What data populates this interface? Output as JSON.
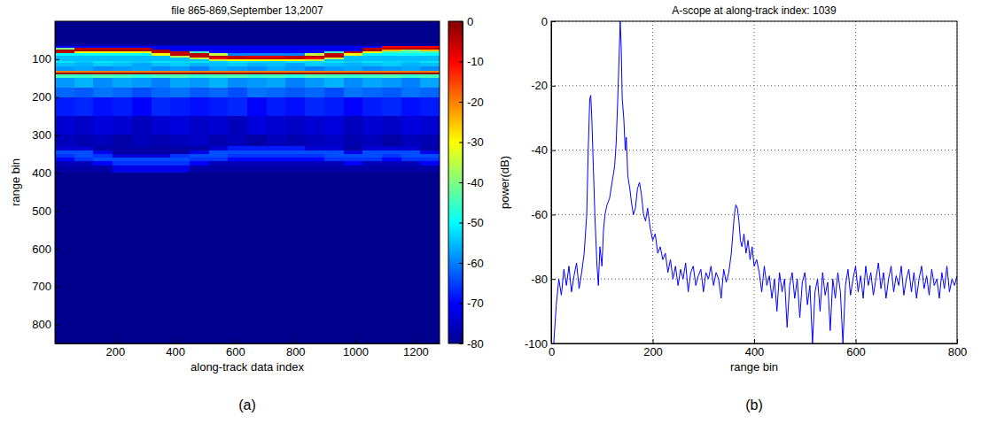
{
  "chart_data": [
    {
      "type": "heatmap",
      "title": "file 865-869,September 13,2007",
      "x_label": "along-track data index",
      "y_label": "range bin",
      "caption": "(a)",
      "xlim": [
        0,
        1280
      ],
      "ylim": [
        850,
        0
      ],
      "xticks": [
        200,
        400,
        600,
        800,
        1000,
        1200
      ],
      "yticks": [
        100,
        200,
        300,
        400,
        500,
        600,
        700,
        800
      ],
      "x_edges": [
        0,
        64,
        128,
        192,
        256,
        320,
        384,
        448,
        512,
        576,
        640,
        704,
        768,
        832,
        896,
        960,
        1024,
        1088,
        1152,
        1216,
        1280
      ],
      "y_edges": [
        0,
        60,
        65,
        70,
        75,
        80,
        85,
        90,
        95,
        100,
        105,
        110,
        120,
        130,
        135,
        140,
        150,
        175,
        200,
        250,
        300,
        330,
        340,
        350,
        360,
        370,
        380,
        400,
        500,
        600,
        700,
        850
      ],
      "cells": [
        [
          -80,
          -80,
          -80,
          -80,
          -80,
          -80,
          -80,
          -80,
          -80,
          -80,
          -80,
          -80,
          -80,
          -80,
          -80,
          -80,
          -80,
          -80,
          -80,
          -80
        ],
        [
          -78,
          -78,
          -78,
          -78,
          -78,
          -78,
          -78,
          -78,
          -78,
          -78,
          -78,
          -78,
          -78,
          -78,
          -78,
          -78,
          -78,
          -78,
          -78,
          -78
        ],
        [
          -70,
          -70,
          -70,
          -70,
          -70,
          -70,
          -70,
          -70,
          -70,
          -70,
          -70,
          -70,
          -70,
          -70,
          -70,
          -70,
          -70,
          -10,
          -10,
          -10
        ],
        [
          -40,
          -5,
          -5,
          -5,
          -5,
          -72,
          -72,
          -72,
          -72,
          -72,
          -72,
          -72,
          -72,
          -72,
          -72,
          -72,
          -5,
          -5,
          -5,
          -5
        ],
        [
          -3,
          -3,
          -3,
          -3,
          -3,
          -3,
          -70,
          -70,
          -70,
          -70,
          -70,
          -70,
          -70,
          -70,
          -70,
          -70,
          -3,
          -25,
          -40,
          -25
        ],
        [
          -5,
          -30,
          -30,
          -30,
          -30,
          -5,
          -5,
          -45,
          -70,
          -70,
          -70,
          -70,
          -70,
          -70,
          -45,
          -5,
          -30,
          -45,
          -45,
          -45
        ],
        [
          -50,
          -50,
          -50,
          -50,
          -50,
          -30,
          -5,
          -5,
          -35,
          -60,
          -60,
          -60,
          -60,
          -35,
          -5,
          -30,
          -50,
          -50,
          -50,
          -50
        ],
        [
          -55,
          -55,
          -55,
          -55,
          -55,
          -55,
          -35,
          -5,
          -5,
          -5,
          -8,
          -8,
          -5,
          -5,
          -5,
          -55,
          -55,
          -55,
          -55,
          -55
        ],
        [
          -55,
          -55,
          -55,
          -55,
          -55,
          -55,
          -55,
          -35,
          -10,
          -5,
          -5,
          -5,
          -5,
          -10,
          -35,
          -55,
          -55,
          -55,
          -55,
          -55
        ],
        [
          -55,
          -55,
          -55,
          -55,
          -55,
          -55,
          -55,
          -55,
          -35,
          -30,
          -30,
          -30,
          -30,
          -35,
          -55,
          -55,
          -55,
          -55,
          -55,
          -55
        ],
        [
          -52,
          -54,
          -52,
          -53,
          -54,
          -52,
          -53,
          -52,
          -54,
          -52,
          -53,
          -54,
          -52,
          -53,
          -52,
          -54,
          -52,
          -53,
          -54,
          -52
        ],
        [
          -55,
          -56,
          -54,
          -55,
          -57,
          -55,
          -54,
          -56,
          -55,
          -54,
          -56,
          -55,
          -57,
          -54,
          -55,
          -56,
          -55,
          -54,
          -56,
          -55
        ],
        [
          -58,
          -57,
          -59,
          -58,
          -57,
          -59,
          -58,
          -60,
          -57,
          -58,
          -59,
          -57,
          -58,
          -60,
          -58,
          -57,
          -59,
          -58,
          -57,
          -59
        ],
        [
          -20,
          -20,
          -20,
          -20,
          -20,
          -20,
          -20,
          -20,
          -20,
          -20,
          -20,
          -20,
          -20,
          -20,
          -20,
          -20,
          -20,
          -20,
          -20,
          -20
        ],
        [
          -2,
          -2,
          -2,
          -2,
          -2,
          -2,
          -2,
          -2,
          -2,
          -2,
          -2,
          -2,
          -2,
          -2,
          -2,
          -2,
          -2,
          -2,
          -2,
          -2
        ],
        [
          -45,
          -46,
          -44,
          -45,
          -47,
          -45,
          -44,
          -46,
          -45,
          -44,
          -46,
          -45,
          -47,
          -44,
          -45,
          -46,
          -45,
          -44,
          -46,
          -45
        ],
        [
          -58,
          -56,
          -59,
          -57,
          -58,
          -60,
          -57,
          -58,
          -56,
          -59,
          -58,
          -57,
          -60,
          -58,
          -56,
          -59,
          -57,
          -58,
          -60,
          -57
        ],
        [
          -62,
          -63,
          -61,
          -62,
          -64,
          -62,
          -61,
          -63,
          -62,
          -64,
          -61,
          -62,
          -63,
          -62,
          -64,
          -61,
          -62,
          -63,
          -61,
          -62
        ],
        [
          -68,
          -67,
          -69,
          -68,
          -70,
          -67,
          -68,
          -69,
          -68,
          -67,
          -70,
          -68,
          -69,
          -67,
          -68,
          -70,
          -68,
          -67,
          -69,
          -68
        ],
        [
          -74,
          -75,
          -73,
          -74,
          -76,
          -74,
          -73,
          -75,
          -74,
          -76,
          -73,
          -74,
          -75,
          -74,
          -73,
          -76,
          -74,
          -75,
          -73,
          -74
        ],
        [
          -76,
          -77,
          -76,
          -78,
          -76,
          -77,
          -76,
          -75,
          -77,
          -76,
          -78,
          -76,
          -77,
          -76,
          -75,
          -77,
          -76,
          -78,
          -76,
          -77
        ],
        [
          -74,
          -74,
          -78,
          -78,
          -78,
          -78,
          -78,
          -78,
          -74,
          -68,
          -68,
          -68,
          -68,
          -74,
          -74,
          -78,
          -74,
          -74,
          -74,
          -78
        ],
        [
          -64,
          -64,
          -72,
          -78,
          -78,
          -78,
          -78,
          -72,
          -64,
          -64,
          -64,
          -64,
          -64,
          -64,
          -64,
          -72,
          -64,
          -64,
          -64,
          -72
        ],
        [
          -66,
          -64,
          -66,
          -74,
          -74,
          -74,
          -66,
          -64,
          -64,
          -66,
          -66,
          -66,
          -66,
          -66,
          -64,
          -64,
          -64,
          -66,
          -64,
          -64
        ],
        [
          -70,
          -66,
          -64,
          -64,
          -64,
          -64,
          -64,
          -66,
          -66,
          -70,
          -70,
          -70,
          -70,
          -70,
          -66,
          -66,
          -66,
          -70,
          -66,
          -66
        ],
        [
          -76,
          -76,
          -70,
          -66,
          -66,
          -66,
          -66,
          -70,
          -76,
          -76,
          -76,
          -76,
          -76,
          -76,
          -76,
          -70,
          -76,
          -76,
          -76,
          -70
        ],
        [
          -78,
          -78,
          -78,
          -72,
          -72,
          -72,
          -72,
          -78,
          -78,
          -78,
          -78,
          -78,
          -78,
          -78,
          -78,
          -78,
          -78,
          -78,
          -78,
          -78
        ],
        [
          -80,
          -80,
          -80,
          -80,
          -80,
          -80,
          -80,
          -80,
          -80,
          -80,
          -80,
          -80,
          -80,
          -80,
          -80,
          -80,
          -80,
          -80,
          -80,
          -80
        ],
        [
          -80,
          -80,
          -80,
          -80,
          -80,
          -80,
          -80,
          -80,
          -80,
          -80,
          -80,
          -80,
          -80,
          -80,
          -80,
          -80,
          -80,
          -80,
          -80,
          -80
        ],
        [
          -80,
          -80,
          -80,
          -80,
          -80,
          -80,
          -80,
          -80,
          -80,
          -80,
          -80,
          -80,
          -80,
          -80,
          -80,
          -80,
          -80,
          -80,
          -80,
          -80
        ],
        [
          -80,
          -80,
          -80,
          -80,
          -80,
          -80,
          -80,
          -80,
          -80,
          -80,
          -80,
          -80,
          -80,
          -80,
          -80,
          -80,
          -80,
          -80,
          -80,
          -80
        ]
      ],
      "color_lim": [
        -80,
        0
      ],
      "color_ticks": [
        0,
        -10,
        -20,
        -30,
        -40,
        -50,
        -60,
        -70,
        -80
      ]
    },
    {
      "type": "line",
      "title": "A-scope at along-track index: 1039",
      "x_label": "range bin",
      "y_label": "power(dB)",
      "caption": "(b)",
      "xlim": [
        0,
        800
      ],
      "ylim": [
        -100,
        0
      ],
      "xticks": [
        0,
        200,
        400,
        600,
        800
      ],
      "yticks": [
        -100,
        -80,
        -60,
        -40,
        -20,
        0
      ],
      "grid": true,
      "color": "#0000ff",
      "x": [
        5,
        10,
        15,
        20,
        25,
        30,
        35,
        40,
        45,
        50,
        55,
        60,
        65,
        70,
        73,
        76,
        78,
        80,
        83,
        86,
        90,
        93,
        96,
        100,
        103,
        106,
        110,
        115,
        120,
        125,
        128,
        131,
        134,
        136,
        138,
        140,
        143,
        146,
        148,
        151,
        155,
        158,
        162,
        166,
        170,
        174,
        178,
        182,
        186,
        190,
        195,
        200,
        205,
        210,
        215,
        220,
        225,
        230,
        235,
        240,
        245,
        250,
        255,
        260,
        265,
        270,
        275,
        280,
        285,
        290,
        295,
        300,
        305,
        310,
        315,
        320,
        325,
        330,
        335,
        340,
        345,
        350,
        355,
        358,
        361,
        364,
        367,
        370,
        373,
        376,
        380,
        384,
        388,
        392,
        396,
        400,
        405,
        410,
        415,
        420,
        425,
        430,
        435,
        440,
        445,
        450,
        455,
        460,
        465,
        470,
        475,
        480,
        485,
        490,
        495,
        500,
        505,
        510,
        515,
        520,
        525,
        530,
        535,
        540,
        545,
        550,
        555,
        560,
        565,
        570,
        575,
        580,
        585,
        590,
        595,
        600,
        605,
        610,
        615,
        620,
        625,
        630,
        635,
        640,
        645,
        650,
        655,
        660,
        665,
        670,
        675,
        680,
        685,
        690,
        695,
        700,
        705,
        710,
        715,
        720,
        725,
        730,
        735,
        740,
        745,
        750,
        755,
        760,
        765,
        770,
        775,
        780,
        785,
        790,
        795,
        800
      ],
      "values": [
        -100,
        -88,
        -80,
        -85,
        -77,
        -82,
        -76,
        -84,
        -79,
        -75,
        -83,
        -78,
        -72,
        -60,
        -40,
        -24,
        -23,
        -30,
        -45,
        -60,
        -75,
        -82,
        -70,
        -76,
        -65,
        -60,
        -57,
        -55,
        -50,
        -45,
        -38,
        -25,
        -10,
        0,
        -8,
        -24,
        -30,
        -40,
        -36,
        -48,
        -52,
        -56,
        -60,
        -58,
        -52,
        -50,
        -54,
        -60,
        -62,
        -58,
        -64,
        -68,
        -66,
        -72,
        -70,
        -74,
        -72,
        -78,
        -74,
        -80,
        -76,
        -82,
        -77,
        -80,
        -75,
        -84,
        -78,
        -76,
        -82,
        -79,
        -77,
        -84,
        -78,
        -80,
        -76,
        -82,
        -78,
        -80,
        -86,
        -77,
        -81,
        -78,
        -72,
        -66,
        -60,
        -57,
        -58,
        -62,
        -68,
        -70,
        -66,
        -72,
        -68,
        -74,
        -70,
        -76,
        -74,
        -78,
        -84,
        -76,
        -82,
        -79,
        -86,
        -80,
        -90,
        -78,
        -84,
        -80,
        -95,
        -82,
        -78,
        -86,
        -80,
        -92,
        -81,
        -78,
        -88,
        -82,
        -100,
        -84,
        -80,
        -90,
        -78,
        -85,
        -81,
        -96,
        -80,
        -86,
        -78,
        -84,
        -100,
        -82,
        -77,
        -85,
        -80,
        -76,
        -84,
        -79,
        -86,
        -76,
        -82,
        -78,
        -85,
        -80,
        -75,
        -83,
        -78,
        -86,
        -80,
        -76,
        -84,
        -79,
        -82,
        -76,
        -85,
        -80,
        -77,
        -84,
        -78,
        -86,
        -80,
        -76,
        -83,
        -79,
        -85,
        -77,
        -82,
        -80,
        -86,
        -78,
        -83,
        -76,
        -84,
        -80,
        -82,
        -79
      ]
    }
  ]
}
